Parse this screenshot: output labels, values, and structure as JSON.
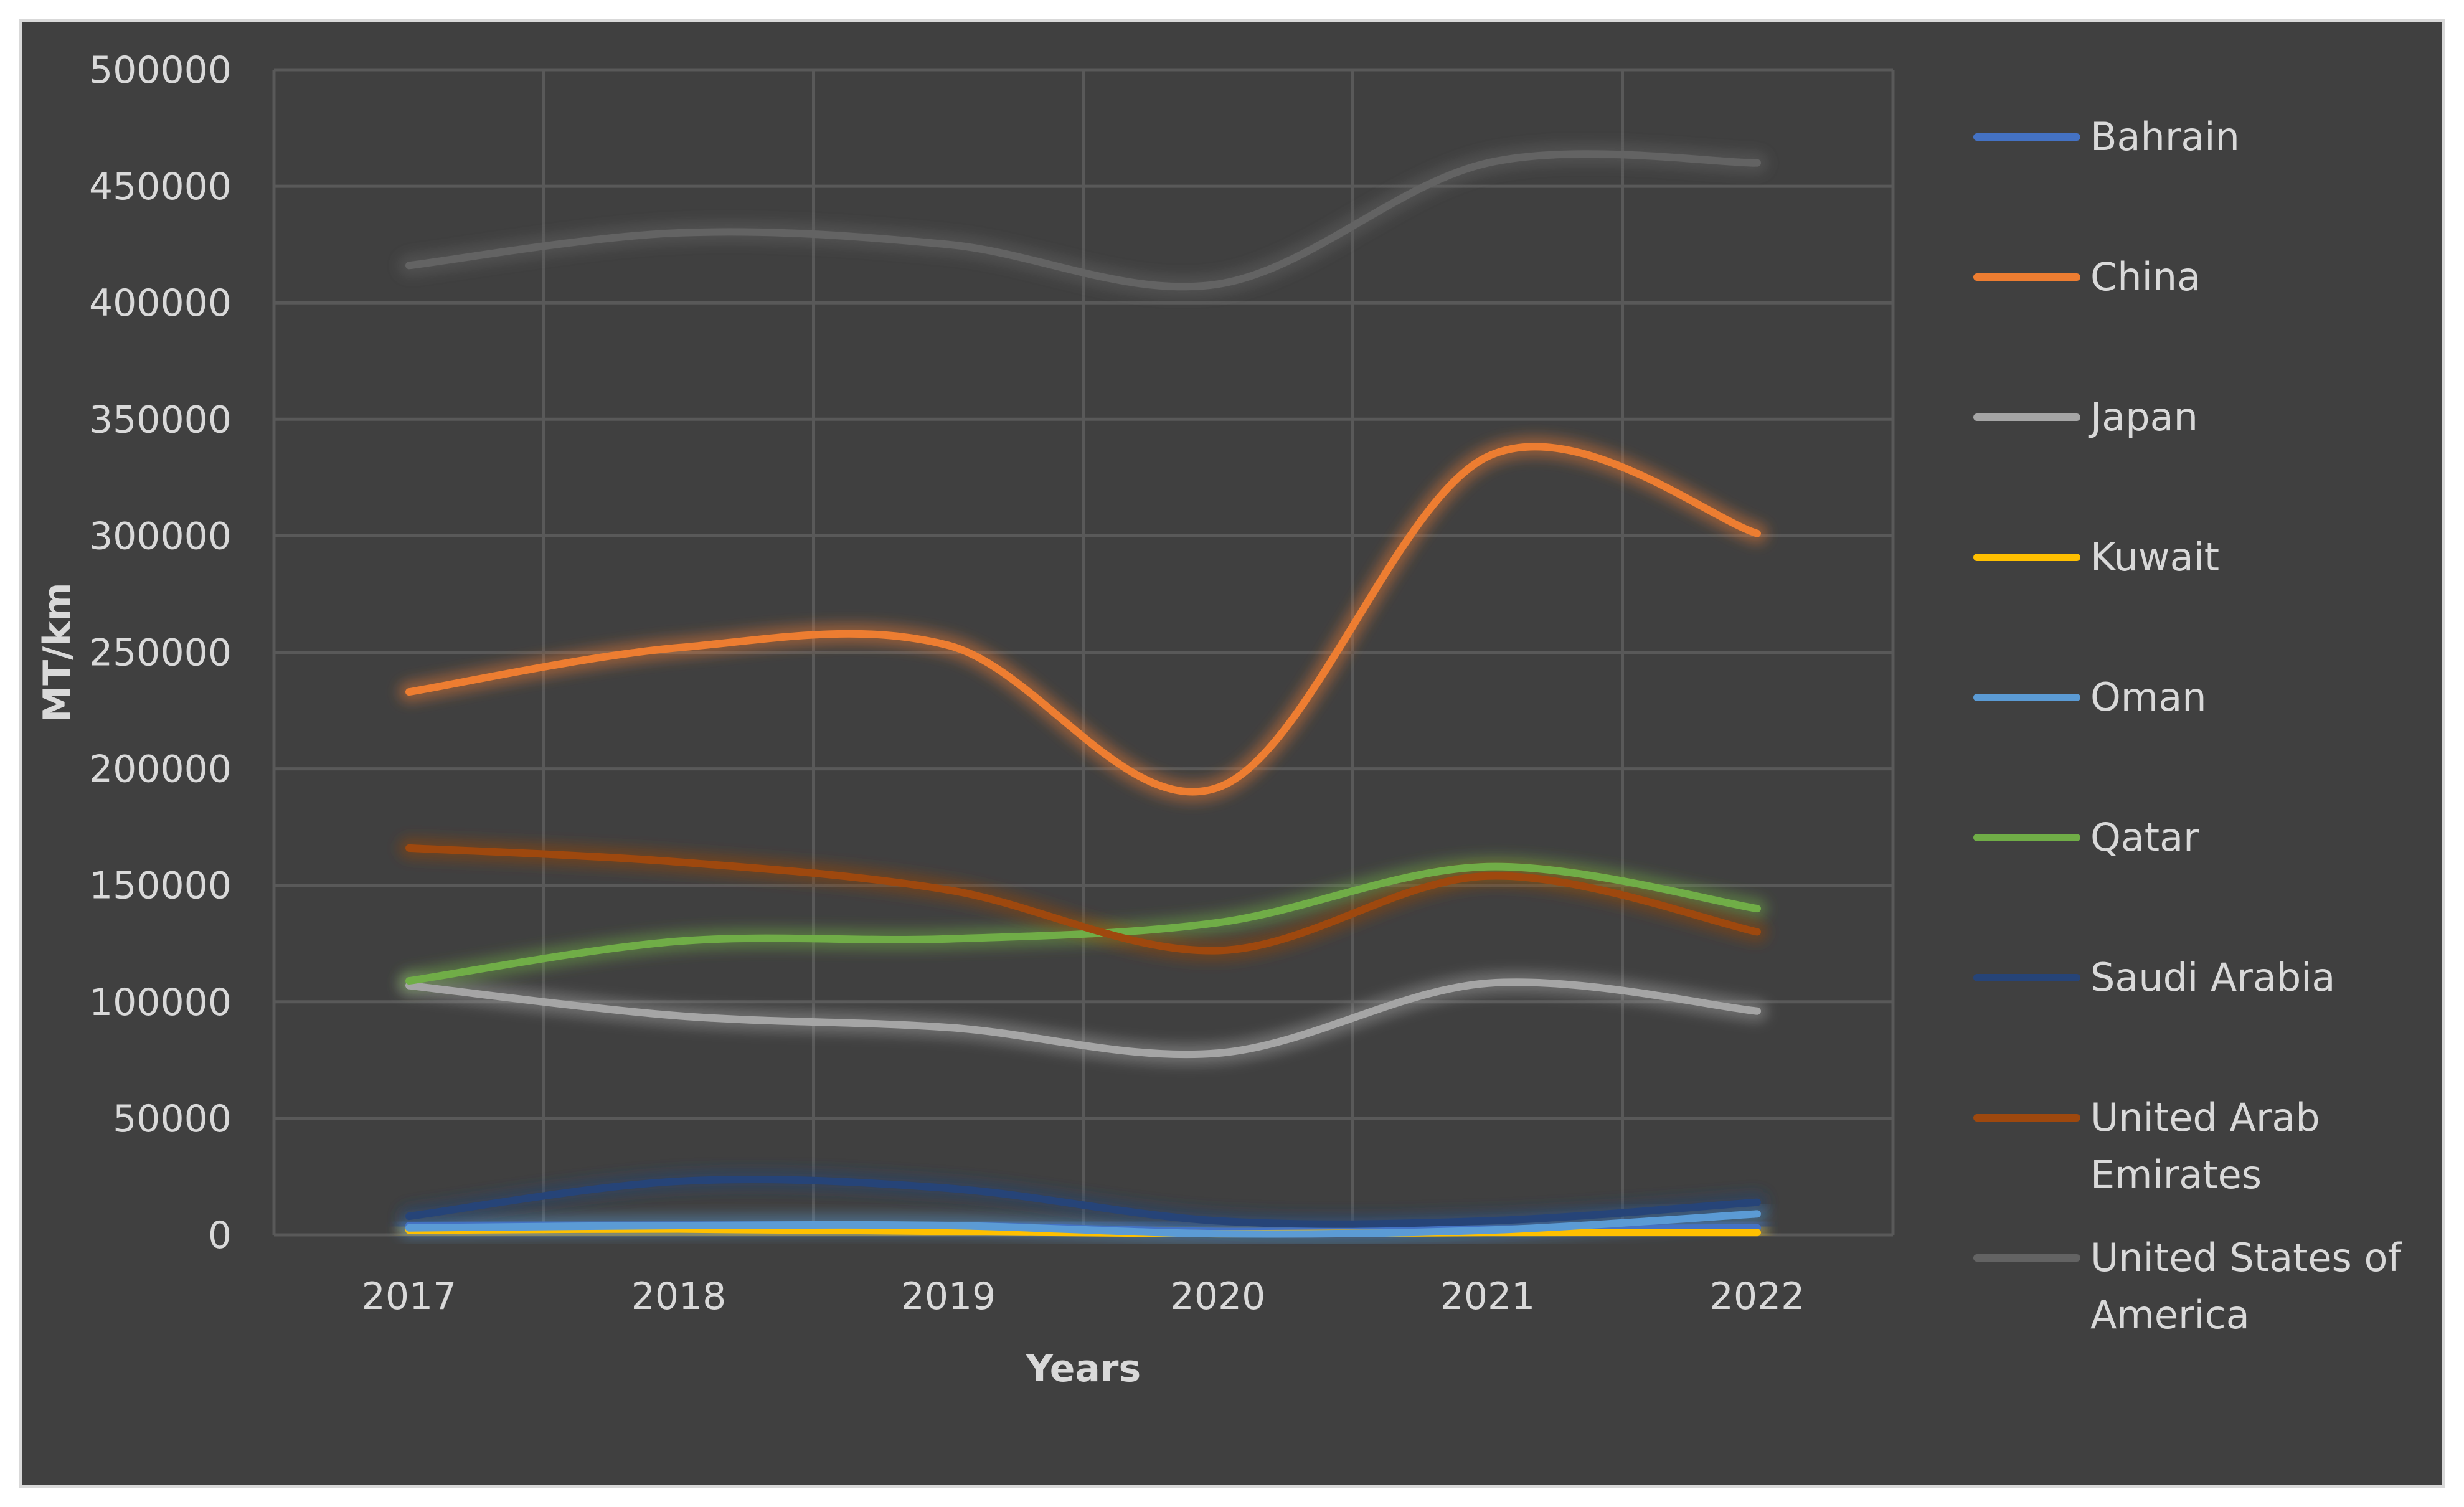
{
  "chart_data": {
    "type": "line",
    "title": "",
    "xlabel": "Years",
    "ylabel": "MT/km",
    "x": [
      "2017",
      "2018",
      "2019",
      "2020",
      "2021",
      "2022"
    ],
    "ylim": [
      0,
      500000
    ],
    "yticks": [
      0,
      50000,
      100000,
      150000,
      200000,
      250000,
      300000,
      350000,
      400000,
      450000,
      500000
    ],
    "grid": true,
    "smooth": true,
    "legend_position": "right",
    "series": [
      {
        "name": "Bahrain",
        "color": "#4472c4",
        "values": [
          4000,
          4200,
          4000,
          1500,
          2500,
          3000
        ]
      },
      {
        "name": "China",
        "color": "#ed7d31",
        "values": [
          233000,
          252000,
          253000,
          192000,
          334000,
          301000
        ]
      },
      {
        "name": "Japan",
        "color": "#a5a5a5",
        "values": [
          107000,
          94000,
          89000,
          78000,
          108000,
          96000
        ]
      },
      {
        "name": "Kuwait",
        "color": "#ffc000",
        "values": [
          2000,
          2500,
          1500,
          500,
          1000,
          1000
        ]
      },
      {
        "name": "Oman",
        "color": "#5b9bd5",
        "values": [
          3000,
          4000,
          4000,
          500,
          2000,
          9000
        ]
      },
      {
        "name": "Qatar",
        "color": "#70ad47",
        "values": [
          109000,
          126000,
          127000,
          134000,
          158000,
          140000
        ]
      },
      {
        "name": "Saudi Arabia",
        "color": "#264478",
        "values": [
          8000,
          23000,
          20000,
          6000,
          6000,
          14000
        ]
      },
      {
        "name": "United Arab Emirates",
        "color": "#9e480e",
        "values": [
          166000,
          160000,
          148000,
          122000,
          154000,
          130000
        ]
      },
      {
        "name": "United States of America",
        "color": "#636363",
        "values": [
          416000,
          430000,
          425000,
          408000,
          460000,
          460000
        ]
      }
    ],
    "legend_lines": [
      [
        "Bahrain"
      ],
      [
        "China"
      ],
      [
        "Japan"
      ],
      [
        "Kuwait"
      ],
      [
        "Oman"
      ],
      [
        "Qatar"
      ],
      [
        "Saudi Arabia"
      ],
      [
        "United Arab",
        "Emirates"
      ],
      [
        "United States of",
        "America"
      ]
    ]
  }
}
